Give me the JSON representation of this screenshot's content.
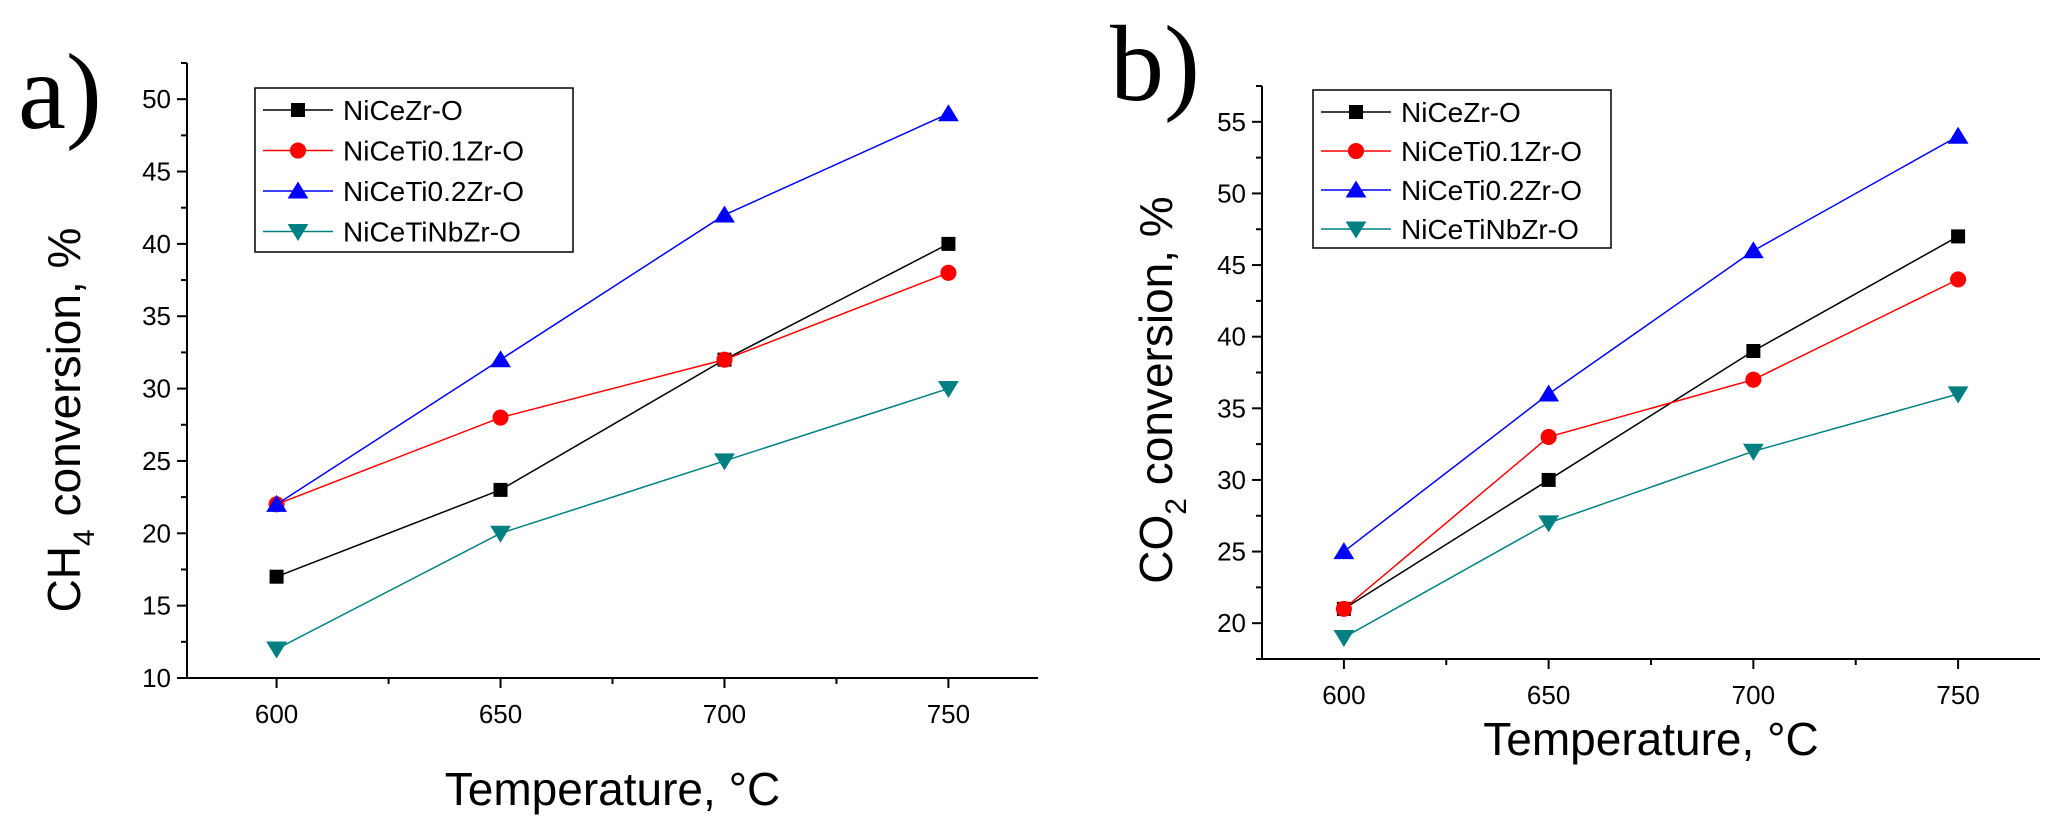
{
  "chart_data": [
    {
      "type": "line",
      "panel_label": "a)",
      "xlabel": "Temperature, °C",
      "ylabel_main": "CH",
      "ylabel_sub": "4",
      "ylabel_rest": " conversion, %",
      "xlim": [
        580,
        770
      ],
      "ylim": [
        10,
        52.5
      ],
      "x_ticks": [
        600,
        650,
        700,
        750
      ],
      "y_ticks": [
        10,
        15,
        20,
        25,
        30,
        35,
        40,
        45,
        50
      ],
      "x": [
        600,
        650,
        700,
        750
      ],
      "legend_position": "top-left",
      "series": [
        {
          "name": "NiCeZr-O",
          "values": [
            17,
            23,
            32,
            40
          ],
          "color": "#000000",
          "marker": "square"
        },
        {
          "name": "NiCeTi0.1Zr-O",
          "values": [
            22,
            28,
            32,
            38
          ],
          "color": "#ff0000",
          "marker": "circle"
        },
        {
          "name": "NiCeTi0.2Zr-O",
          "values": [
            22,
            32,
            42,
            49
          ],
          "color": "#0000ff",
          "marker": "triangle-up"
        },
        {
          "name": "NiCeTiNbZr-O",
          "values": [
            12,
            20,
            25,
            30
          ],
          "color": "#008080",
          "marker": "triangle-down"
        }
      ]
    },
    {
      "type": "line",
      "panel_label": "b)",
      "xlabel": "Temperature, °C",
      "ylabel_main": "CO",
      "ylabel_sub": "2",
      "ylabel_rest": " conversion, %",
      "xlim": [
        580,
        770
      ],
      "ylim": [
        17.5,
        57.5
      ],
      "x_ticks": [
        600,
        650,
        700,
        750
      ],
      "y_ticks": [
        20,
        25,
        30,
        35,
        40,
        45,
        50,
        55
      ],
      "x": [
        600,
        650,
        700,
        750
      ],
      "legend_position": "top-left",
      "series": [
        {
          "name": "NiCeZr-O",
          "values": [
            21,
            30,
            39,
            47
          ],
          "color": "#000000",
          "marker": "square"
        },
        {
          "name": "NiCeTi0.1Zr-O",
          "values": [
            21,
            33,
            37,
            44
          ],
          "color": "#ff0000",
          "marker": "circle"
        },
        {
          "name": "NiCeTi0.2Zr-O",
          "values": [
            25,
            36,
            46,
            54
          ],
          "color": "#0000ff",
          "marker": "triangle-up"
        },
        {
          "name": "NiCeTiNbZr-O",
          "values": [
            19,
            27,
            32,
            36
          ],
          "color": "#008080",
          "marker": "triangle-down"
        }
      ]
    }
  ]
}
